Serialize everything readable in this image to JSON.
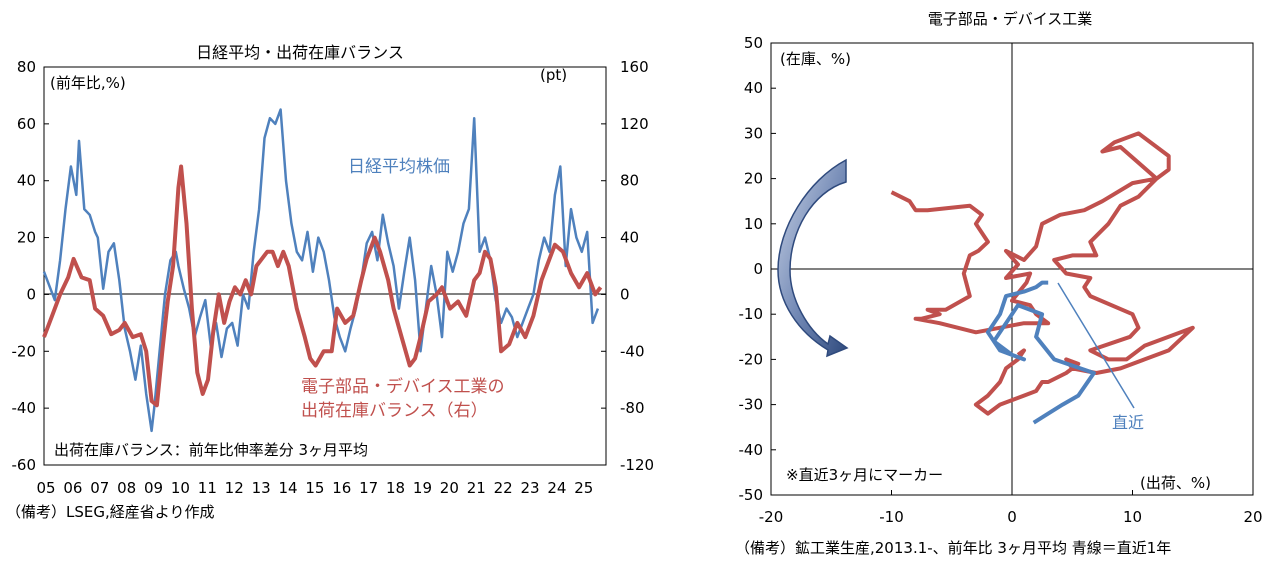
{
  "chart_data": [
    {
      "type": "line",
      "title": "日経平均・出荷在庫バランス",
      "ylabel": "(前年比,%)",
      "y2label": "(pt)",
      "ylim": [
        -60,
        80
      ],
      "y2lim": [
        -120,
        160
      ],
      "yticks": [
        "80",
        "60",
        "40",
        "20",
        "0",
        "-20",
        "-40",
        "-60"
      ],
      "y2ticks": [
        "160",
        "120",
        "80",
        "40",
        "0",
        "-40",
        "-80",
        "-120"
      ],
      "xlim": [
        2005.0,
        2025.9
      ],
      "xticks": [
        "05",
        "06",
        "07",
        "08",
        "09",
        "10",
        "11",
        "12",
        "13",
        "14",
        "15",
        "16",
        "17",
        "18",
        "19",
        "20",
        "21",
        "22",
        "23",
        "24",
        "25"
      ],
      "grid": false,
      "note": "出荷在庫バランス：前年比伸率差分 3ヶ月平均",
      "source": "（備考）LSEG,経産省より作成",
      "series": [
        {
          "name": "日経平均株価",
          "axis": "left",
          "color": "#4f81bd",
          "x": [
            2005.0,
            2005.2,
            2005.4,
            2005.6,
            2005.8,
            2006.0,
            2006.2,
            2006.3,
            2006.5,
            2006.7,
            2006.9,
            2007.0,
            2007.2,
            2007.4,
            2007.6,
            2007.8,
            2008.0,
            2008.2,
            2008.4,
            2008.6,
            2008.8,
            2009.0,
            2009.1,
            2009.3,
            2009.5,
            2009.7,
            2009.9,
            2010.0,
            2010.2,
            2010.4,
            2010.6,
            2010.8,
            2011.0,
            2011.2,
            2011.4,
            2011.6,
            2011.8,
            2012.0,
            2012.2,
            2012.4,
            2012.6,
            2012.8,
            2013.0,
            2013.2,
            2013.4,
            2013.6,
            2013.8,
            2014.0,
            2014.2,
            2014.4,
            2014.6,
            2014.8,
            2015.0,
            2015.2,
            2015.4,
            2015.6,
            2015.8,
            2016.0,
            2016.2,
            2016.4,
            2016.6,
            2016.8,
            2017.0,
            2017.2,
            2017.4,
            2017.6,
            2017.8,
            2018.0,
            2018.2,
            2018.4,
            2018.6,
            2018.8,
            2019.0,
            2019.2,
            2019.4,
            2019.6,
            2019.8,
            2020.0,
            2020.2,
            2020.4,
            2020.6,
            2020.8,
            2021.0,
            2021.2,
            2021.4,
            2021.6,
            2021.8,
            2022.0,
            2022.2,
            2022.4,
            2022.6,
            2022.8,
            2023.0,
            2023.2,
            2023.4,
            2023.6,
            2023.8,
            2024.0,
            2024.2,
            2024.4,
            2024.6,
            2024.8,
            2025.0,
            2025.2,
            2025.4,
            2025.6
          ],
          "values": [
            8,
            3,
            -2,
            12,
            30,
            45,
            35,
            54,
            30,
            28,
            22,
            20,
            2,
            15,
            18,
            5,
            -12,
            -20,
            -30,
            -18,
            -35,
            -48,
            -40,
            -20,
            0,
            12,
            15,
            10,
            2,
            -5,
            -15,
            -8,
            -2,
            -18,
            -10,
            -22,
            -12,
            -10,
            -18,
            0,
            -5,
            15,
            30,
            55,
            62,
            60,
            65,
            40,
            25,
            15,
            12,
            22,
            8,
            20,
            15,
            5,
            -8,
            -15,
            -20,
            -12,
            -5,
            5,
            18,
            22,
            12,
            28,
            18,
            10,
            -5,
            8,
            20,
            5,
            -20,
            -5,
            10,
            0,
            -15,
            15,
            8,
            15,
            25,
            30,
            62,
            15,
            20,
            12,
            -2,
            -10,
            -5,
            -8,
            -15,
            -10,
            -5,
            0,
            12,
            20,
            15,
            35,
            45,
            10,
            30,
            20,
            15,
            22,
            -10,
            -5
          ]
        },
        {
          "name": "電子部品・デバイス工業の出荷在庫バランス（右）",
          "axis": "right",
          "color": "#c0504d",
          "x": [
            2005.0,
            2005.3,
            2005.6,
            2005.9,
            2006.1,
            2006.4,
            2006.7,
            2006.9,
            2007.2,
            2007.5,
            2007.8,
            2008.0,
            2008.3,
            2008.6,
            2008.8,
            2009.0,
            2009.2,
            2009.4,
            2009.6,
            2009.8,
            2010.0,
            2010.1,
            2010.3,
            2010.5,
            2010.7,
            2010.9,
            2011.1,
            2011.3,
            2011.5,
            2011.7,
            2011.9,
            2012.1,
            2012.3,
            2012.5,
            2012.7,
            2012.9,
            2013.1,
            2013.3,
            2013.5,
            2013.7,
            2013.9,
            2014.1,
            2014.4,
            2014.7,
            2014.9,
            2015.1,
            2015.4,
            2015.7,
            2015.9,
            2016.2,
            2016.5,
            2016.8,
            2017.0,
            2017.3,
            2017.5,
            2017.8,
            2018.0,
            2018.3,
            2018.6,
            2018.8,
            2019.0,
            2019.3,
            2019.6,
            2019.8,
            2020.1,
            2020.4,
            2020.7,
            2021.0,
            2021.2,
            2021.4,
            2021.6,
            2021.8,
            2022.0,
            2022.3,
            2022.6,
            2022.9,
            2023.2,
            2023.5,
            2023.8,
            2024.0,
            2024.3,
            2024.6,
            2024.9,
            2025.2,
            2025.5,
            2025.7
          ],
          "values": [
            -30,
            -15,
            0,
            12,
            25,
            12,
            10,
            -10,
            -15,
            -28,
            -25,
            -20,
            -30,
            -28,
            -40,
            -75,
            -78,
            -40,
            -5,
            20,
            75,
            90,
            50,
            -10,
            -55,
            -70,
            -60,
            -25,
            0,
            -20,
            -5,
            5,
            0,
            10,
            0,
            20,
            25,
            30,
            30,
            20,
            30,
            20,
            -10,
            -30,
            -45,
            -50,
            -40,
            -40,
            -10,
            -20,
            -15,
            10,
            25,
            40,
            30,
            10,
            -10,
            -30,
            -50,
            -45,
            -30,
            -5,
            0,
            5,
            -10,
            -5,
            -15,
            10,
            15,
            30,
            25,
            5,
            -40,
            -35,
            -20,
            -30,
            -15,
            10,
            25,
            35,
            30,
            15,
            5,
            15,
            0,
            5
          ]
        }
      ]
    },
    {
      "type": "scatter",
      "title": "電子部品・デバイス工業",
      "xlabel": "(出荷、%)",
      "ylabel": "(在庫、%)",
      "xlim": [
        -20,
        20
      ],
      "ylim": [
        -50,
        50
      ],
      "xticks": [
        "-20",
        "-10",
        "0",
        "10",
        "20"
      ],
      "yticks": [
        "50",
        "40",
        "30",
        "20",
        "10",
        "0",
        "-10",
        "-20",
        "-30",
        "-40",
        "-50"
      ],
      "grid": false,
      "note": "※直近3ヶ月にマーカー",
      "annotation": "直近",
      "source": "（備考）鉱工業生産,2013.1-、前年比 3ヶ月平均 青線＝直近1年",
      "series": [
        {
          "name": "2013.1-",
          "color": "#c0504d",
          "x": [
            -10,
            -8.5,
            -8,
            -7,
            -3.5,
            -2.5,
            -3,
            -2,
            -2.8,
            -3.5,
            -4,
            -3.5,
            -5.5,
            -7,
            -6,
            -7.5,
            -8,
            -6,
            -3,
            1,
            3,
            2,
            1.5,
            0,
            1.2,
            1.5,
            -0.5,
            0.5,
            -0.5,
            1,
            2,
            2.5,
            4,
            6,
            7.5,
            10,
            12,
            13,
            13,
            10.5,
            8.5,
            7.5,
            9,
            12,
            10.5,
            9,
            8,
            6.5,
            7,
            5,
            3.5,
            4.5,
            6.5,
            6,
            6.5,
            10,
            10.5,
            9.8,
            6.5,
            8,
            9.5,
            11,
            13,
            15,
            13,
            11,
            9,
            7,
            5,
            4.5,
            5.5,
            4.5,
            3,
            2.5,
            2,
            1,
            0,
            -1,
            -2,
            -3,
            -2,
            -1,
            -0.5,
            0.5,
            1,
            0.5
          ],
          "y": [
            17,
            15,
            13,
            13,
            14,
            12,
            10,
            6,
            4,
            3,
            -1,
            -6,
            -9,
            -9,
            -10,
            -11,
            -11,
            -12,
            -14,
            -12,
            -12,
            -10,
            -8,
            -7,
            -3,
            -1,
            -2,
            1,
            4,
            2,
            5,
            10,
            12,
            13,
            15,
            19,
            20,
            22,
            25,
            30,
            28,
            26,
            27,
            20,
            16,
            14,
            10,
            6,
            3,
            3,
            2,
            -1,
            -2,
            -4,
            -6,
            -10,
            -13,
            -15,
            -18,
            -20,
            -20,
            -17,
            -15,
            -13,
            -18,
            -20,
            -22,
            -23,
            -22,
            -20,
            -21,
            -23,
            -25,
            -25,
            -27,
            -28,
            -29,
            -30,
            -32,
            -30,
            -28,
            -25,
            -22,
            -20,
            -18,
            -19
          ]
        },
        {
          "name": "直近1年",
          "color": "#4f81bd",
          "x": [
            1.8,
            3,
            4.2,
            5.5,
            6.8,
            3.5,
            2,
            2.5,
            0.5,
            -0.5,
            -1.5,
            0,
            1,
            -1,
            -2,
            -1,
            -0.5,
            1,
            2,
            2.5,
            3
          ],
          "y": [
            -34,
            -32,
            -30,
            -28,
            -23,
            -20,
            -15,
            -10,
            -8,
            -12,
            -16,
            -19,
            -20,
            -18,
            -14,
            -10,
            -6,
            -5,
            -4,
            -3,
            -3
          ]
        }
      ]
    }
  ]
}
